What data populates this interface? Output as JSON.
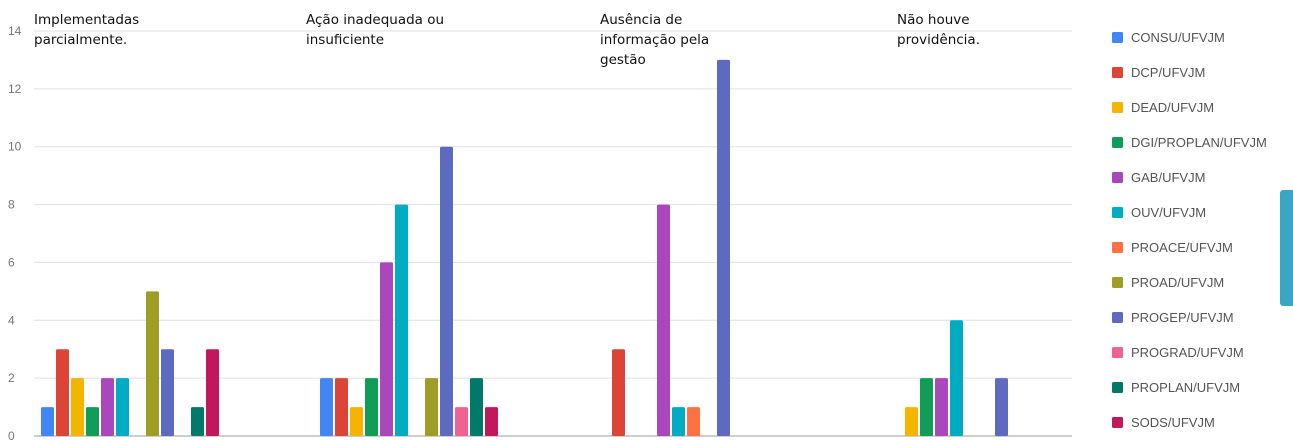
{
  "chart_data": {
    "type": "bar",
    "categories": [
      [
        "Implementadas",
        "parcialmente."
      ],
      [
        "Ação inadequada ou",
        "insuficiente"
      ],
      [
        "Ausência de",
        "informação pela",
        "gestão"
      ],
      [
        "Não houve",
        "providência."
      ]
    ],
    "series": [
      {
        "name": "CONSU/UFVJM",
        "color": "#4285f4",
        "values": [
          1,
          2,
          0,
          0
        ]
      },
      {
        "name": "DCP/UFVJM",
        "color": "#db4437",
        "values": [
          3,
          2,
          3,
          0
        ]
      },
      {
        "name": "DEAD/UFVJM",
        "color": "#f4b400",
        "values": [
          2,
          1,
          0,
          1
        ]
      },
      {
        "name": "DGI/PROPLAN/UFVJM",
        "color": "#0f9d58",
        "values": [
          1,
          2,
          0,
          2
        ]
      },
      {
        "name": "GAB/UFVJM",
        "color": "#ab47bc",
        "values": [
          2,
          6,
          8,
          2
        ]
      },
      {
        "name": "OUV/UFVJM",
        "color": "#00acc1",
        "values": [
          2,
          8,
          1,
          4
        ]
      },
      {
        "name": "PROACE/UFVJM",
        "color": "#ff7043",
        "values": [
          0,
          0,
          1,
          0
        ]
      },
      {
        "name": "PROAD/UFVJM",
        "color": "#9e9d24",
        "values": [
          5,
          2,
          0,
          0
        ]
      },
      {
        "name": "PROGEP/UFVJM",
        "color": "#5c6bc0",
        "values": [
          3,
          10,
          13,
          2
        ]
      },
      {
        "name": "PROGRAD/UFVJM",
        "color": "#f06292",
        "values": [
          0,
          1,
          0,
          0
        ]
      },
      {
        "name": "PROPLAN/UFVJM",
        "color": "#00796b",
        "values": [
          1,
          2,
          0,
          0
        ]
      },
      {
        "name": "SODS/UFVJM",
        "color": "#c2185b",
        "values": [
          3,
          1,
          0,
          0
        ]
      }
    ],
    "y_ticks": [
      "0",
      "2",
      "4",
      "6",
      "8",
      "10",
      "12",
      "14"
    ],
    "ylim": [
      0,
      14
    ],
    "grid": true,
    "legend_position": "right"
  }
}
